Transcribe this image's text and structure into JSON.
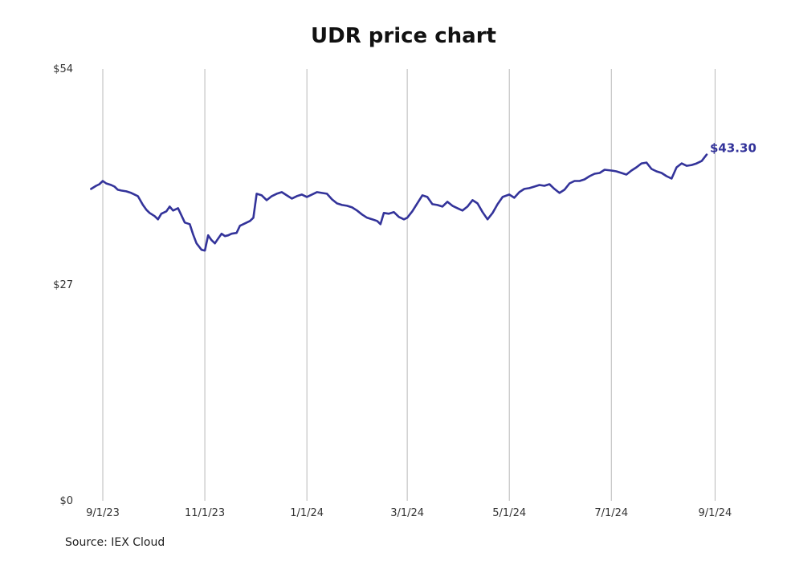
{
  "chart_data": {
    "type": "line",
    "title": "UDR price chart",
    "source": "Source: IEX Cloud",
    "y_ticks": [
      {
        "value": 0,
        "label": "$0"
      },
      {
        "value": 27,
        "label": "$27"
      },
      {
        "value": 54,
        "label": "$54"
      }
    ],
    "x_ticks": [
      {
        "date": "2023-09-01",
        "label": "9/1/23"
      },
      {
        "date": "2023-11-01",
        "label": "11/1/23"
      },
      {
        "date": "2024-01-01",
        "label": "1/1/24"
      },
      {
        "date": "2024-03-01",
        "label": "3/1/24"
      },
      {
        "date": "2024-05-01",
        "label": "5/1/24"
      },
      {
        "date": "2024-07-01",
        "label": "7/1/24"
      },
      {
        "date": "2024-09-01",
        "label": "9/1/24"
      }
    ],
    "xlim": [
      "2023-08-20",
      "2024-09-20"
    ],
    "ylim": [
      0,
      54
    ],
    "grid": "vertical",
    "colors": {
      "line": "#33339a",
      "grid": "#b9b9b9"
    },
    "last_value_label": "$43.30",
    "series": [
      {
        "name": "",
        "points": [
          [
            "2023-08-25",
            39.0
          ],
          [
            "2023-08-28",
            39.4
          ],
          [
            "2023-08-30",
            39.6
          ],
          [
            "2023-09-01",
            40.0
          ],
          [
            "2023-09-03",
            39.7
          ],
          [
            "2023-09-06",
            39.5
          ],
          [
            "2023-09-08",
            39.3
          ],
          [
            "2023-09-10",
            38.9
          ],
          [
            "2023-09-12",
            38.8
          ],
          [
            "2023-09-15",
            38.7
          ],
          [
            "2023-09-18",
            38.5
          ],
          [
            "2023-09-20",
            38.3
          ],
          [
            "2023-09-22",
            38.1
          ],
          [
            "2023-09-25",
            37.0
          ],
          [
            "2023-09-27",
            36.4
          ],
          [
            "2023-09-29",
            36.0
          ],
          [
            "2023-10-02",
            35.6
          ],
          [
            "2023-10-04",
            35.2
          ],
          [
            "2023-10-06",
            35.9
          ],
          [
            "2023-10-09",
            36.2
          ],
          [
            "2023-10-11",
            36.8
          ],
          [
            "2023-10-13",
            36.3
          ],
          [
            "2023-10-16",
            36.6
          ],
          [
            "2023-10-18",
            35.7
          ],
          [
            "2023-10-20",
            34.8
          ],
          [
            "2023-10-23",
            34.6
          ],
          [
            "2023-10-25",
            33.3
          ],
          [
            "2023-10-27",
            32.2
          ],
          [
            "2023-10-30",
            31.4
          ],
          [
            "2023-11-01",
            31.3
          ],
          [
            "2023-11-03",
            33.2
          ],
          [
            "2023-11-05",
            32.6
          ],
          [
            "2023-11-07",
            32.2
          ],
          [
            "2023-11-09",
            32.8
          ],
          [
            "2023-11-11",
            33.4
          ],
          [
            "2023-11-13",
            33.1
          ],
          [
            "2023-11-15",
            33.2
          ],
          [
            "2023-11-17",
            33.4
          ],
          [
            "2023-11-20",
            33.5
          ],
          [
            "2023-11-22",
            34.4
          ],
          [
            "2023-11-25",
            34.7
          ],
          [
            "2023-11-28",
            35.0
          ],
          [
            "2023-11-30",
            35.4
          ],
          [
            "2023-12-02",
            38.4
          ],
          [
            "2023-12-05",
            38.2
          ],
          [
            "2023-12-08",
            37.6
          ],
          [
            "2023-12-11",
            38.1
          ],
          [
            "2023-12-14",
            38.4
          ],
          [
            "2023-12-17",
            38.6
          ],
          [
            "2023-12-20",
            38.2
          ],
          [
            "2023-12-23",
            37.8
          ],
          [
            "2023-12-26",
            38.1
          ],
          [
            "2023-12-29",
            38.3
          ],
          [
            "2024-01-01",
            38.0
          ],
          [
            "2024-01-04",
            38.3
          ],
          [
            "2024-01-07",
            38.6
          ],
          [
            "2024-01-10",
            38.5
          ],
          [
            "2024-01-13",
            38.4
          ],
          [
            "2024-01-16",
            37.7
          ],
          [
            "2024-01-19",
            37.2
          ],
          [
            "2024-01-22",
            37.0
          ],
          [
            "2024-01-25",
            36.9
          ],
          [
            "2024-01-28",
            36.7
          ],
          [
            "2024-01-31",
            36.3
          ],
          [
            "2024-02-03",
            35.8
          ],
          [
            "2024-02-06",
            35.4
          ],
          [
            "2024-02-09",
            35.2
          ],
          [
            "2024-02-12",
            35.0
          ],
          [
            "2024-02-14",
            34.6
          ],
          [
            "2024-02-16",
            36.0
          ],
          [
            "2024-02-19",
            35.9
          ],
          [
            "2024-02-22",
            36.1
          ],
          [
            "2024-02-25",
            35.5
          ],
          [
            "2024-02-28",
            35.2
          ],
          [
            "2024-03-01",
            35.4
          ],
          [
            "2024-03-04",
            36.2
          ],
          [
            "2024-03-07",
            37.2
          ],
          [
            "2024-03-10",
            38.2
          ],
          [
            "2024-03-13",
            38.0
          ],
          [
            "2024-03-16",
            37.1
          ],
          [
            "2024-03-19",
            37.0
          ],
          [
            "2024-03-22",
            36.8
          ],
          [
            "2024-03-25",
            37.4
          ],
          [
            "2024-03-28",
            36.9
          ],
          [
            "2024-03-31",
            36.6
          ],
          [
            "2024-04-03",
            36.3
          ],
          [
            "2024-04-06",
            36.8
          ],
          [
            "2024-04-09",
            37.6
          ],
          [
            "2024-04-12",
            37.2
          ],
          [
            "2024-04-15",
            36.1
          ],
          [
            "2024-04-18",
            35.2
          ],
          [
            "2024-04-21",
            36.0
          ],
          [
            "2024-04-24",
            37.1
          ],
          [
            "2024-04-27",
            38.0
          ],
          [
            "2024-05-01",
            38.3
          ],
          [
            "2024-05-04",
            37.9
          ],
          [
            "2024-05-07",
            38.6
          ],
          [
            "2024-05-10",
            39.0
          ],
          [
            "2024-05-13",
            39.1
          ],
          [
            "2024-05-16",
            39.3
          ],
          [
            "2024-05-19",
            39.5
          ],
          [
            "2024-05-22",
            39.4
          ],
          [
            "2024-05-25",
            39.6
          ],
          [
            "2024-05-28",
            39.0
          ],
          [
            "2024-05-31",
            38.5
          ],
          [
            "2024-06-03",
            38.9
          ],
          [
            "2024-06-06",
            39.7
          ],
          [
            "2024-06-09",
            40.0
          ],
          [
            "2024-06-12",
            40.0
          ],
          [
            "2024-06-15",
            40.2
          ],
          [
            "2024-06-18",
            40.6
          ],
          [
            "2024-06-21",
            40.9
          ],
          [
            "2024-06-24",
            41.0
          ],
          [
            "2024-06-27",
            41.4
          ],
          [
            "2024-07-01",
            41.3
          ],
          [
            "2024-07-04",
            41.2
          ],
          [
            "2024-07-07",
            41.0
          ],
          [
            "2024-07-10",
            40.8
          ],
          [
            "2024-07-13",
            41.3
          ],
          [
            "2024-07-16",
            41.7
          ],
          [
            "2024-07-19",
            42.2
          ],
          [
            "2024-07-22",
            42.3
          ],
          [
            "2024-07-25",
            41.5
          ],
          [
            "2024-07-28",
            41.2
          ],
          [
            "2024-07-31",
            41.0
          ],
          [
            "2024-08-03",
            40.6
          ],
          [
            "2024-08-06",
            40.3
          ],
          [
            "2024-08-09",
            41.7
          ],
          [
            "2024-08-12",
            42.2
          ],
          [
            "2024-08-15",
            41.9
          ],
          [
            "2024-08-18",
            42.0
          ],
          [
            "2024-08-21",
            42.2
          ],
          [
            "2024-08-24",
            42.5
          ],
          [
            "2024-08-27",
            43.3
          ]
        ]
      }
    ]
  }
}
